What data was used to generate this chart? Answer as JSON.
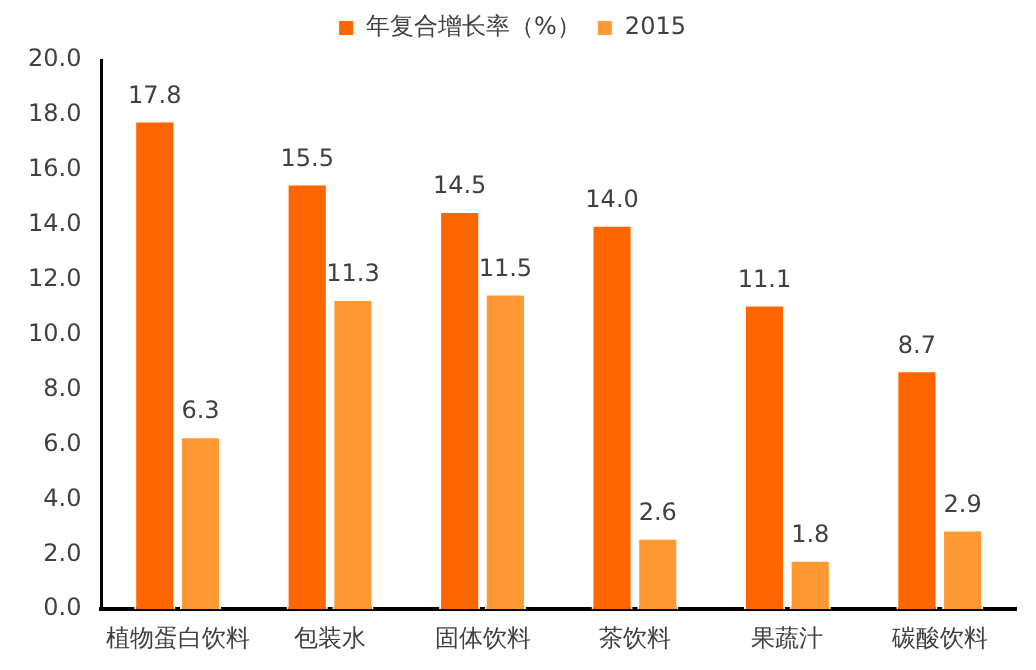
{
  "chart_data": {
    "type": "bar",
    "categories": [
      "植物蛋白饮料",
      "包装水",
      "固体饮料",
      "茶饮料",
      "果蔬汁",
      "碳酸饮料"
    ],
    "series": [
      {
        "name": "年复合增长率（%）",
        "color": "#ff6600",
        "values": [
          17.8,
          15.5,
          14.5,
          14.0,
          11.1,
          8.7
        ],
        "value_labels": [
          "17.8",
          "15.5",
          "14.5",
          "14.0",
          "11.1",
          "8.7"
        ]
      },
      {
        "name": "2015",
        "color": "#ff9933",
        "values": [
          6.3,
          11.3,
          11.5,
          2.6,
          1.8,
          2.9
        ],
        "value_labels": [
          "6.3",
          "11.3",
          "11.5",
          "2.6",
          "1.8",
          "2.9"
        ]
      }
    ],
    "ylim": [
      0,
      20
    ],
    "yticks": [
      {
        "value": 0,
        "label": "0.0"
      },
      {
        "value": 2,
        "label": "2.0"
      },
      {
        "value": 4,
        "label": "4.0"
      },
      {
        "value": 6,
        "label": "6.0"
      },
      {
        "value": 8,
        "label": "8.0"
      },
      {
        "value": 10,
        "label": "10.0"
      },
      {
        "value": 12,
        "label": "12.0"
      },
      {
        "value": 14,
        "label": "14.0"
      },
      {
        "value": 16,
        "label": "16.0"
      },
      {
        "value": 18,
        "label": "18.0"
      },
      {
        "value": 20,
        "label": "20.0"
      }
    ],
    "grid": false,
    "legend": "top"
  }
}
